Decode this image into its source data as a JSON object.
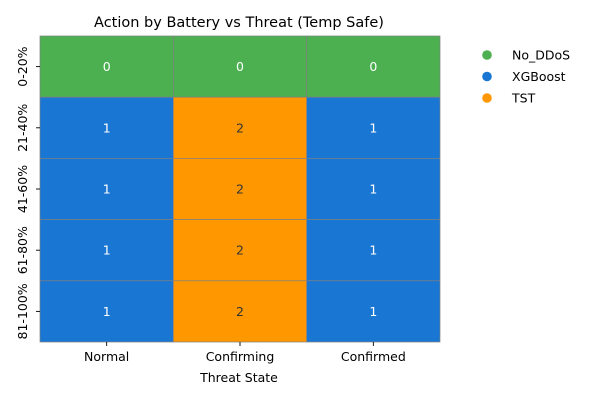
{
  "chart_data": {
    "type": "heatmap",
    "title": "Action by Battery vs Threat (Temp Safe)",
    "xlabel": "Threat State",
    "ylabel": "",
    "x_categories": [
      "Normal",
      "Confirming",
      "Confirmed"
    ],
    "y_categories": [
      "0-20%",
      "21-40%",
      "41-60%",
      "61-80%",
      "81-100%"
    ],
    "values": [
      [
        0,
        0,
        0
      ],
      [
        1,
        2,
        1
      ],
      [
        1,
        2,
        1
      ],
      [
        1,
        2,
        1
      ],
      [
        1,
        2,
        1
      ]
    ],
    "legend": {
      "placement": "right",
      "entries": [
        {
          "label": "No_DDoS",
          "value": 0,
          "color": "#4caf50"
        },
        {
          "label": "XGBoost",
          "value": 1,
          "color": "#1976d2"
        },
        {
          "label": "TST",
          "value": 2,
          "color": "#ff9800"
        }
      ]
    },
    "cell_text_colors": {
      "0": "#ffffff",
      "1": "#ffffff",
      "2": "#333333"
    },
    "grid_line_color": "#808080"
  }
}
